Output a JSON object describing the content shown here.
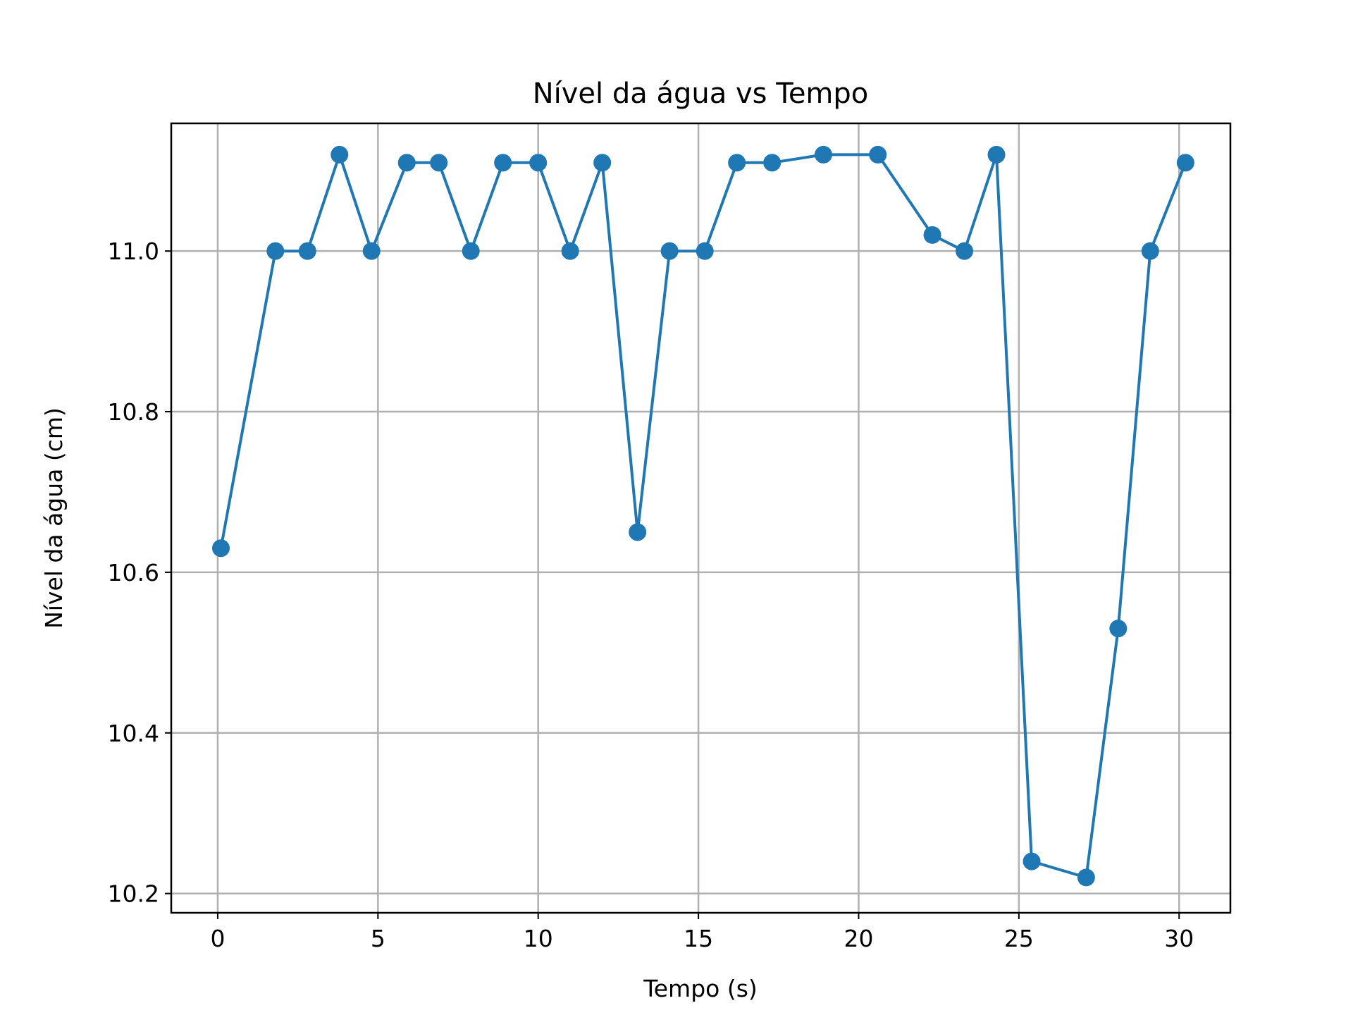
{
  "chart_data": {
    "type": "line",
    "title": "Nível da água vs Tempo",
    "xlabel": "Tempo (s)",
    "ylabel": "Nível da água (cm)",
    "xlim": [
      -1.45,
      31.6
    ],
    "ylim": [
      10.176,
      11.159
    ],
    "xticks": [
      0,
      5,
      10,
      15,
      20,
      25,
      30
    ],
    "yticks": [
      10.2,
      10.4,
      10.6,
      10.8,
      11.0
    ],
    "grid": true,
    "legend": "none",
    "line_color": "#1f77b4",
    "marker": "circle",
    "series": [
      {
        "x": [
          0.1,
          1.8,
          2.8,
          3.8,
          4.8,
          5.9,
          6.9,
          7.9,
          8.9,
          10.0,
          11.0,
          12.0,
          13.1,
          14.1,
          15.2,
          16.2,
          17.3,
          18.9,
          20.6,
          22.3,
          23.3,
          24.3,
          25.4,
          27.1,
          28.1,
          29.1,
          30.2
        ],
        "y": [
          10.63,
          11.0,
          11.0,
          11.12,
          11.0,
          11.11,
          11.11,
          11.0,
          11.11,
          11.11,
          11.0,
          11.11,
          10.65,
          11.0,
          11.0,
          11.11,
          11.11,
          11.12,
          11.12,
          11.02,
          11.0,
          11.12,
          10.24,
          10.22,
          10.53,
          11.0,
          11.11
        ]
      }
    ]
  }
}
